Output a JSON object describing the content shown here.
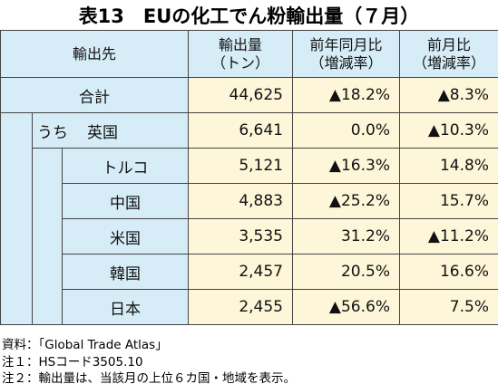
{
  "title": "表13　EUの化工でん粉輸出量（７月）",
  "table": {
    "header": [
      [
        "輸出先"
      ],
      [
        "輸出量",
        "（トン）"
      ],
      [
        "前年同月比",
        "（増減率）"
      ],
      [
        "前月比",
        "（増減率）"
      ]
    ],
    "rows": [
      {
        "label": "合計",
        "cells": [
          "44,625",
          "▲18.2%",
          "▲8.3%"
        ]
      },
      {
        "prefix": "うち",
        "label": "英国",
        "cells": [
          "6,641",
          "0.0%",
          "▲10.3%"
        ]
      },
      {
        "label": "トルコ",
        "cells": [
          "5,121",
          "▲16.3%",
          "14.8%"
        ]
      },
      {
        "label": "中国",
        "cells": [
          "4,883",
          "▲25.2%",
          "15.7%"
        ]
      },
      {
        "label": "米国",
        "cells": [
          "3,535",
          "31.2%",
          "▲11.2%"
        ]
      },
      {
        "label": "韓国",
        "cells": [
          "2,457",
          "20.5%",
          "16.6%"
        ]
      },
      {
        "label": "日本",
        "cells": [
          "2,455",
          "▲56.6%",
          "7.5%"
        ]
      }
    ]
  },
  "notes": [
    "資料：「Global Trade Atlas」",
    "注１：HSコード3505.10",
    "注２：輸出量は、当該月の上位６カ国・地域を表示。"
  ]
}
